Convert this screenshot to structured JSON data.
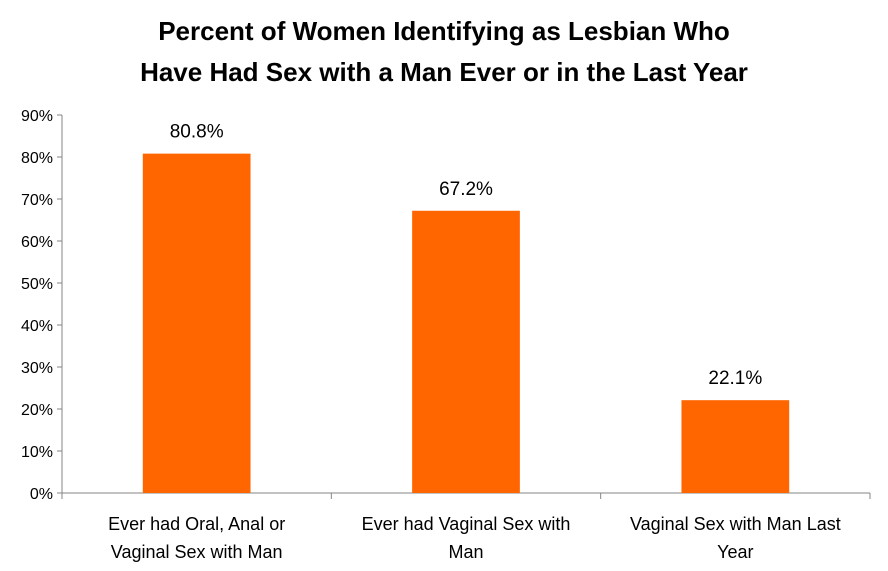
{
  "chart_data": {
    "type": "bar",
    "title_lines": [
      "Percent of Women Identifying as Lesbian Who",
      "Have Had Sex with a Man Ever or in the Last Year"
    ],
    "categories": [
      [
        "Ever had Oral, Anal or",
        "Vaginal Sex with Man"
      ],
      [
        "Ever had Vaginal Sex with",
        "Man"
      ],
      [
        "Vaginal Sex with Man Last",
        "Year"
      ]
    ],
    "values": [
      80.8,
      67.2,
      22.1
    ],
    "data_labels": [
      "80.8%",
      "67.2%",
      "22.1%"
    ],
    "y_ticks": [
      "0%",
      "10%",
      "20%",
      "30%",
      "40%",
      "50%",
      "60%",
      "70%",
      "80%",
      "90%"
    ],
    "ylim": [
      0,
      90
    ],
    "grid": false,
    "legend": "none",
    "bar_color": "#FF6600"
  }
}
